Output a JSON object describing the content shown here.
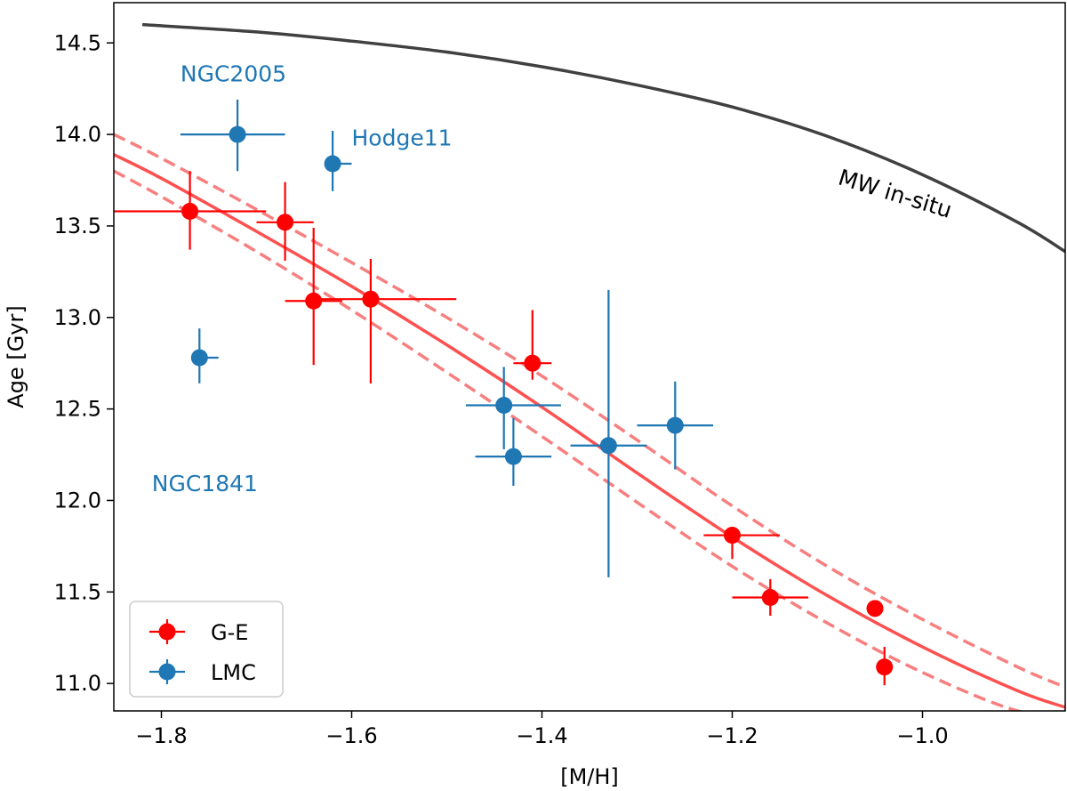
{
  "chart_data": {
    "type": "scatter",
    "xlabel": "[M/H]",
    "ylabel": "Age [Gyr]",
    "xlim": [
      -1.85,
      -0.85
    ],
    "ylim": [
      10.85,
      14.72
    ],
    "xticks": [
      -1.8,
      -1.6,
      -1.4,
      -1.2,
      -1.0
    ],
    "xtick_labels": [
      "−1.8",
      "−1.6",
      "−1.4",
      "−1.2",
      "−1.0"
    ],
    "yticks": [
      11.0,
      11.5,
      12.0,
      12.5,
      13.0,
      13.5,
      14.0,
      14.5
    ],
    "ytick_labels": [
      "11.0",
      "11.5",
      "12.0",
      "12.5",
      "13.0",
      "13.5",
      "14.0",
      "14.5"
    ],
    "grid": false,
    "legend_position": "lower-left",
    "series": [
      {
        "name": "G-E",
        "color": "#ff0000",
        "points": [
          {
            "x": -1.77,
            "y": 13.58,
            "xerr": [
              0.08,
              0.08
            ],
            "yerr": [
              0.21,
              0.22
            ]
          },
          {
            "x": -1.67,
            "y": 13.52,
            "xerr": [
              0.03,
              0.03
            ],
            "yerr": [
              0.21,
              0.22
            ]
          },
          {
            "x": -1.64,
            "y": 13.09,
            "xerr": [
              0.03,
              0.03
            ],
            "yerr": [
              0.35,
              0.4
            ]
          },
          {
            "x": -1.58,
            "y": 13.1,
            "xerr": [
              0.06,
              0.09
            ],
            "yerr": [
              0.46,
              0.22
            ]
          },
          {
            "x": -1.41,
            "y": 12.75,
            "xerr": [
              0.02,
              0.02
            ],
            "yerr": [
              0.09,
              0.29
            ]
          },
          {
            "x": -1.2,
            "y": 11.81,
            "xerr": [
              0.03,
              0.05
            ],
            "yerr": [
              0.13,
              0.0
            ]
          },
          {
            "x": -1.16,
            "y": 11.47,
            "xerr": [
              0.04,
              0.04
            ],
            "yerr": [
              0.1,
              0.1
            ]
          },
          {
            "x": -1.05,
            "y": 11.41,
            "xerr": [
              0.0,
              0.0
            ],
            "yerr": [
              0.0,
              0.0
            ]
          },
          {
            "x": -1.04,
            "y": 11.09,
            "xerr": [
              0.0,
              0.0
            ],
            "yerr": [
              0.1,
              0.11
            ]
          }
        ]
      },
      {
        "name": "LMC",
        "color": "#1f77b4",
        "points": [
          {
            "x": -1.72,
            "y": 14.0,
            "xerr": [
              0.06,
              0.05
            ],
            "yerr": [
              0.2,
              0.19
            ]
          },
          {
            "x": -1.62,
            "y": 13.84,
            "xerr": [
              0.0,
              0.02
            ],
            "yerr": [
              0.15,
              0.18
            ]
          },
          {
            "x": -1.76,
            "y": 12.78,
            "xerr": [
              0.0,
              0.02
            ],
            "yerr": [
              0.14,
              0.16
            ]
          },
          {
            "x": -1.44,
            "y": 12.52,
            "xerr": [
              0.04,
              0.06
            ],
            "yerr": [
              0.24,
              0.21
            ]
          },
          {
            "x": -1.43,
            "y": 12.24,
            "xerr": [
              0.04,
              0.04
            ],
            "yerr": [
              0.16,
              0.21
            ]
          },
          {
            "x": -1.33,
            "y": 12.3,
            "xerr": [
              0.04,
              0.04
            ],
            "yerr": [
              0.72,
              0.85
            ]
          },
          {
            "x": -1.26,
            "y": 12.41,
            "xerr": [
              0.04,
              0.04
            ],
            "yerr": [
              0.24,
              0.24
            ]
          }
        ]
      }
    ],
    "lines": [
      {
        "name": "MW in-situ",
        "color": "#404040",
        "style": "solid",
        "x": [
          -1.82,
          -1.7,
          -1.6,
          -1.5,
          -1.4,
          -1.3,
          -1.2,
          -1.1,
          -1.0,
          -0.9,
          -0.85
        ],
        "y": [
          14.6,
          14.56,
          14.51,
          14.45,
          14.37,
          14.27,
          14.15,
          13.99,
          13.78,
          13.52,
          13.36
        ]
      },
      {
        "name": "G-E fit",
        "color": "#ff5050",
        "style": "solid",
        "x": [
          -1.85,
          -1.8,
          -1.7,
          -1.6,
          -1.5,
          -1.4,
          -1.3,
          -1.2,
          -1.1,
          -1.0,
          -0.9,
          -0.85
        ],
        "y": [
          13.89,
          13.76,
          13.47,
          13.17,
          12.85,
          12.51,
          12.15,
          11.8,
          11.48,
          11.2,
          10.96,
          10.87
        ]
      },
      {
        "name": "G-E fit upper",
        "color": "#f77f7f",
        "style": "dashed",
        "x": [
          -1.85,
          -1.8,
          -1.7,
          -1.6,
          -1.5,
          -1.4,
          -1.3,
          -1.2,
          -1.1,
          -1.0,
          -0.9,
          -0.85
        ],
        "y": [
          14.0,
          13.87,
          13.59,
          13.3,
          13.0,
          12.68,
          12.33,
          11.97,
          11.64,
          11.35,
          11.09,
          10.98
        ]
      },
      {
        "name": "G-E fit lower",
        "color": "#f77f7f",
        "style": "dashed",
        "x": [
          -1.85,
          -1.8,
          -1.7,
          -1.6,
          -1.5,
          -1.4,
          -1.3,
          -1.2,
          -1.1,
          -1.0,
          -0.9,
          -0.85
        ],
        "y": [
          13.8,
          13.66,
          13.36,
          13.04,
          12.7,
          12.35,
          11.99,
          11.64,
          11.33,
          11.06,
          10.85,
          10.85
        ]
      }
    ],
    "annotations": [
      {
        "text": "NGC2005",
        "x": -1.78,
        "y": 14.29,
        "color": "#1f77b4"
      },
      {
        "text": "Hodge11",
        "x": -1.6,
        "y": 13.94,
        "color": "#1f77b4"
      },
      {
        "text": "NGC1841",
        "x": -1.81,
        "y": 12.05,
        "color": "#1f77b4"
      },
      {
        "text": "MW in-situ",
        "x": -1.09,
        "y": 13.73,
        "color": "#000000",
        "rotation": 17
      }
    ]
  }
}
